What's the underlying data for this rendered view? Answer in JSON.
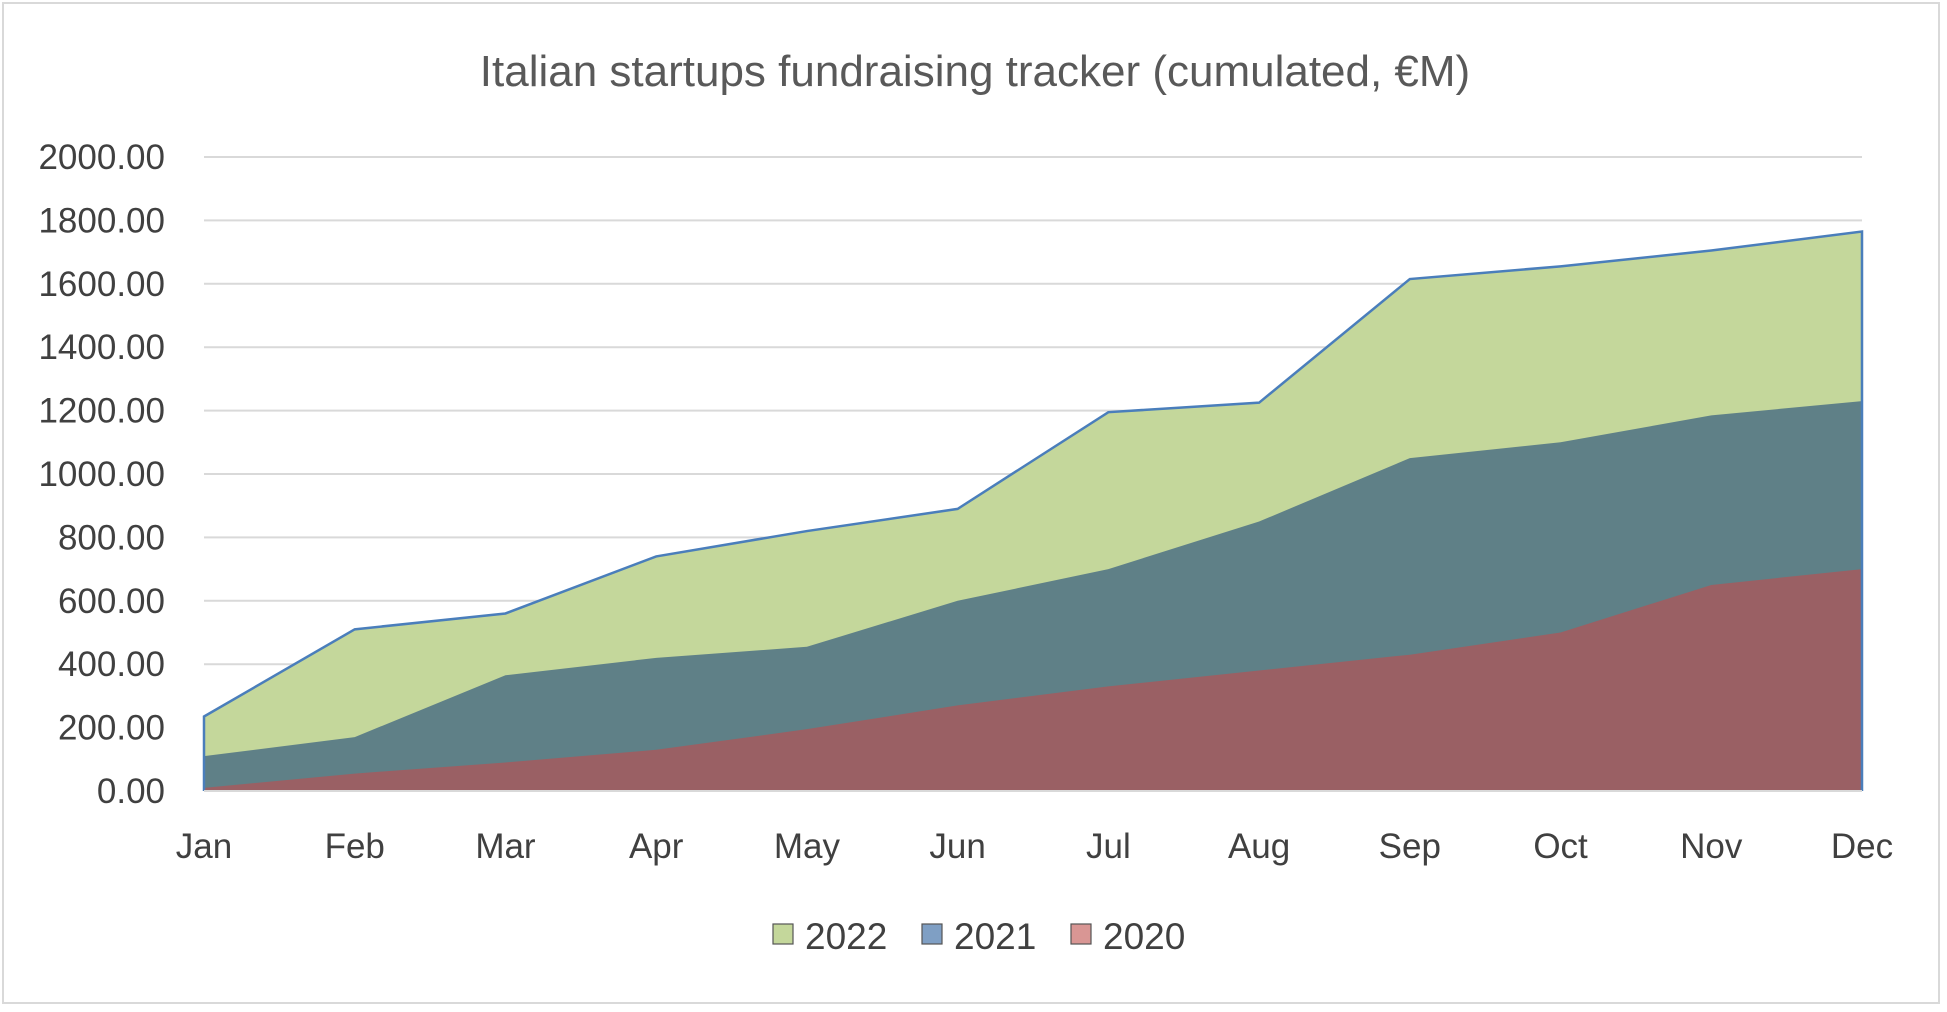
{
  "chart_data": {
    "type": "area",
    "stacked": true,
    "title": "Italian startups fundraising tracker (cumulated, €M)",
    "xlabel": "",
    "ylabel": "",
    "categories": [
      "Jan",
      "Feb",
      "Mar",
      "Apr",
      "May",
      "Jun",
      "Jul",
      "Aug",
      "Sep",
      "Oct",
      "Nov",
      "Dec"
    ],
    "y_ticks": [
      "0.00",
      "200.00",
      "400.00",
      "600.00",
      "800.00",
      "1000.00",
      "1200.00",
      "1400.00",
      "1600.00",
      "1800.00",
      "2000.00"
    ],
    "ylim": [
      0,
      2000
    ],
    "grid": true,
    "legend_position": "bottom",
    "series": [
      {
        "name": "2020",
        "color": "#9a6064",
        "legend_color": "#d99694",
        "values": [
          10,
          55,
          90,
          130,
          195,
          270,
          330,
          380,
          430,
          500,
          650,
          700
        ]
      },
      {
        "name": "2021",
        "color": "#5f8087",
        "legend_color": "#7f9fc4",
        "values": [
          110,
          170,
          365,
          420,
          455,
          600,
          700,
          850,
          1050,
          1100,
          1185,
          1230
        ]
      },
      {
        "name": "2022",
        "color": "#c4d79b",
        "legend_color": "#c4d79b",
        "values": [
          235,
          510,
          560,
          740,
          820,
          890,
          1195,
          1225,
          1615,
          1655,
          1705,
          1765
        ]
      }
    ],
    "legend_order": [
      "2022",
      "2021",
      "2020"
    ],
    "outline_color": "#4a7ebb"
  }
}
